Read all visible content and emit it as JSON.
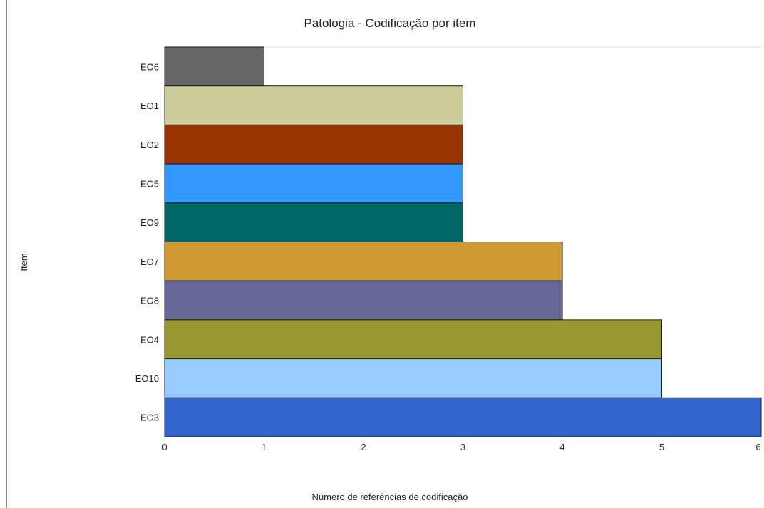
{
  "chart_data": {
    "type": "bar",
    "orientation": "horizontal",
    "title": "Patologia - Codificação por item",
    "xlabel": "Número de referências de codificação",
    "ylabel": "Item",
    "categories": [
      "EO6",
      "EO1",
      "EO2",
      "EO5",
      "EO9",
      "EO7",
      "EO8",
      "EO4",
      "EO10",
      "EO3"
    ],
    "values": [
      1,
      3,
      3,
      3,
      3,
      4,
      4,
      5,
      5,
      6
    ],
    "colors": [
      "#666666",
      "#cccc99",
      "#993300",
      "#3399ff",
      "#006666",
      "#cc9933",
      "#666699",
      "#999933",
      "#99ccff",
      "#3366cc"
    ],
    "xlim": [
      0,
      6
    ],
    "xticks": [
      "0",
      "1",
      "2",
      "3",
      "4",
      "5",
      "6"
    ],
    "grid": false,
    "legend": "none"
  }
}
